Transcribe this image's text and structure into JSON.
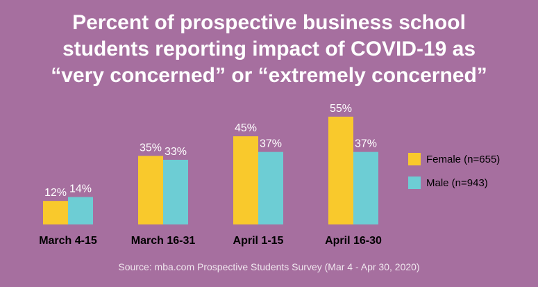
{
  "title_lines": [
    "Percent of prospective business school",
    "students reporting impact of COVID-19 as",
    "“very concerned” or “extremely concerned”"
  ],
  "source": "Source: mba.com Prospective Students Survey (Mar 4 - Apr 30, 2020)",
  "colors": {
    "background": "#a66f9f",
    "female": "#f9c92c",
    "male": "#6dcdd4",
    "text": "#ffffff",
    "axis_text": "#000000"
  },
  "chart_data": {
    "type": "bar",
    "categories": [
      "March 4-15",
      "March 16-31",
      "April 1-15",
      "April 16-30"
    ],
    "series": [
      {
        "name": "Female (n=655)",
        "values": [
          12,
          35,
          45,
          55
        ]
      },
      {
        "name": "Male (n=943)",
        "values": [
          14,
          33,
          37,
          37
        ]
      }
    ],
    "unit": "%",
    "legend_position": "right",
    "grid": false
  }
}
